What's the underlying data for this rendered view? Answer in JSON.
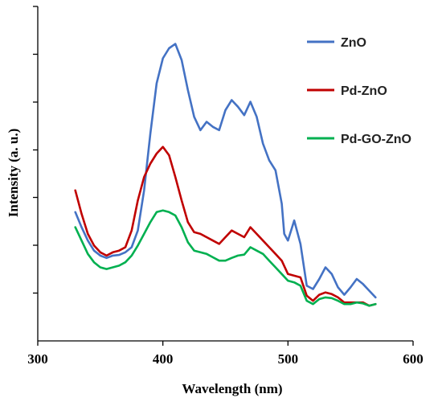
{
  "chart_data": {
    "type": "line",
    "xlabel": "Wavelength (nm)",
    "ylabel": "Intensity (a. u.)",
    "xlim": [
      300,
      600
    ],
    "ylim": [
      0,
      100
    ],
    "x_ticks": [
      300,
      400,
      500,
      600
    ],
    "x_tick_labels": [
      "300",
      "400",
      "500",
      "600"
    ],
    "y_tick_values": [
      14.3,
      28.6,
      42.9,
      57.1,
      71.4,
      85.7,
      100
    ],
    "y_tick_labels_shown": false,
    "grid": false,
    "legend_position": "top-right",
    "series": [
      {
        "name": "ZnO",
        "color": "#4472C4",
        "points": [
          [
            330,
            38.5
          ],
          [
            335,
            34
          ],
          [
            340,
            30
          ],
          [
            345,
            27
          ],
          [
            350,
            25.5
          ],
          [
            355,
            24.8
          ],
          [
            360,
            25.5
          ],
          [
            365,
            25.7
          ],
          [
            370,
            26.5
          ],
          [
            375,
            28
          ],
          [
            380,
            33
          ],
          [
            385,
            45
          ],
          [
            390,
            62
          ],
          [
            395,
            77
          ],
          [
            400,
            84.5
          ],
          [
            405,
            87.5
          ],
          [
            410,
            88.8
          ],
          [
            415,
            84
          ],
          [
            420,
            75
          ],
          [
            425,
            67
          ],
          [
            430,
            63
          ],
          [
            435,
            65.5
          ],
          [
            440,
            64
          ],
          [
            445,
            63
          ],
          [
            450,
            69
          ],
          [
            455,
            72
          ],
          [
            460,
            70
          ],
          [
            465,
            67.5
          ],
          [
            470,
            71.5
          ],
          [
            475,
            67
          ],
          [
            480,
            59
          ],
          [
            485,
            54
          ],
          [
            490,
            51
          ],
          [
            495,
            41
          ],
          [
            497,
            32
          ],
          [
            500,
            30
          ],
          [
            505,
            36
          ],
          [
            510,
            29
          ],
          [
            515,
            16.5
          ],
          [
            520,
            15.5
          ],
          [
            525,
            18.5
          ],
          [
            530,
            22
          ],
          [
            535,
            20
          ],
          [
            540,
            16
          ],
          [
            545,
            13.8
          ],
          [
            550,
            16
          ],
          [
            555,
            18.5
          ],
          [
            560,
            17
          ],
          [
            565,
            15
          ],
          [
            570,
            13
          ]
        ]
      },
      {
        "name": "Pd-ZnO",
        "color": "#C00000",
        "points": [
          [
            330,
            45
          ],
          [
            335,
            38
          ],
          [
            340,
            32
          ],
          [
            345,
            28.5
          ],
          [
            350,
            26.5
          ],
          [
            355,
            25.5
          ],
          [
            360,
            26.5
          ],
          [
            365,
            27
          ],
          [
            370,
            28
          ],
          [
            375,
            33
          ],
          [
            380,
            42
          ],
          [
            385,
            49
          ],
          [
            390,
            53
          ],
          [
            395,
            56
          ],
          [
            400,
            58
          ],
          [
            405,
            55.5
          ],
          [
            410,
            49
          ],
          [
            415,
            42
          ],
          [
            420,
            35.5
          ],
          [
            425,
            32.5
          ],
          [
            430,
            32
          ],
          [
            435,
            31
          ],
          [
            440,
            30
          ],
          [
            445,
            29
          ],
          [
            450,
            31
          ],
          [
            455,
            33
          ],
          [
            460,
            32
          ],
          [
            465,
            31
          ],
          [
            470,
            34
          ],
          [
            475,
            32
          ],
          [
            480,
            30
          ],
          [
            485,
            28
          ],
          [
            490,
            26
          ],
          [
            495,
            24
          ],
          [
            500,
            20
          ],
          [
            505,
            19.5
          ],
          [
            510,
            19
          ],
          [
            515,
            13.5
          ],
          [
            520,
            12
          ],
          [
            525,
            13.8
          ],
          [
            530,
            14.5
          ],
          [
            535,
            14
          ],
          [
            540,
            13
          ],
          [
            545,
            11.5
          ],
          [
            550,
            11.5
          ],
          [
            555,
            11.5
          ],
          [
            560,
            11.5
          ],
          [
            565,
            10.5
          ],
          [
            570,
            11
          ]
        ]
      },
      {
        "name": "Pd-GO-ZnO",
        "color": "#00B050",
        "points": [
          [
            330,
            34
          ],
          [
            335,
            30
          ],
          [
            340,
            26
          ],
          [
            345,
            23.5
          ],
          [
            350,
            22
          ],
          [
            355,
            21.5
          ],
          [
            360,
            22
          ],
          [
            365,
            22.5
          ],
          [
            370,
            23.5
          ],
          [
            375,
            25.5
          ],
          [
            380,
            28.5
          ],
          [
            385,
            32
          ],
          [
            390,
            35.5
          ],
          [
            395,
            38.5
          ],
          [
            400,
            39
          ],
          [
            405,
            38.5
          ],
          [
            410,
            37.5
          ],
          [
            415,
            34
          ],
          [
            420,
            29.5
          ],
          [
            425,
            27
          ],
          [
            430,
            26.5
          ],
          [
            435,
            26
          ],
          [
            440,
            25
          ],
          [
            445,
            24
          ],
          [
            450,
            24
          ],
          [
            455,
            24.8
          ],
          [
            460,
            25.5
          ],
          [
            465,
            25.8
          ],
          [
            470,
            28
          ],
          [
            475,
            27
          ],
          [
            480,
            26
          ],
          [
            485,
            24
          ],
          [
            490,
            22
          ],
          [
            495,
            20
          ],
          [
            500,
            18
          ],
          [
            505,
            17.5
          ],
          [
            510,
            16.5
          ],
          [
            515,
            12
          ],
          [
            520,
            11
          ],
          [
            525,
            12.5
          ],
          [
            530,
            13
          ],
          [
            535,
            12.8
          ],
          [
            540,
            12
          ],
          [
            545,
            11
          ],
          [
            550,
            11
          ],
          [
            555,
            11.5
          ],
          [
            560,
            11.2
          ],
          [
            565,
            10.5
          ],
          [
            570,
            11
          ]
        ]
      }
    ]
  }
}
